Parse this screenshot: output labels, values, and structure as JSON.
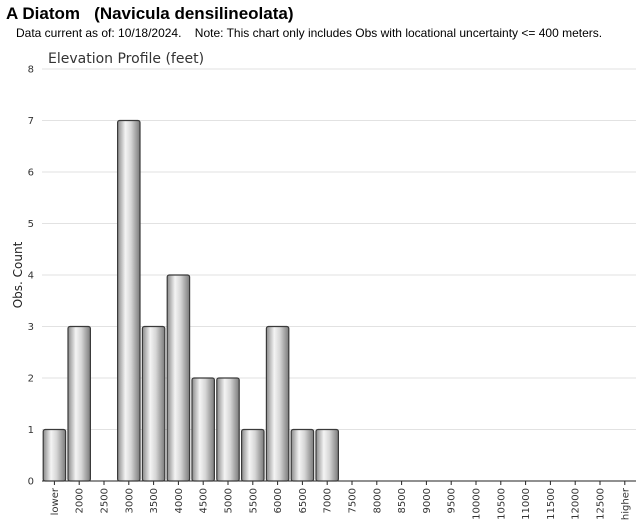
{
  "header": {
    "title": "A Diatom   (Navicula densilineolata)",
    "note": "Data current as of: 10/18/2024.    Note: This chart only includes Obs with locational uncertainty <= 400 meters."
  },
  "chart_data": {
    "type": "bar",
    "title": "Elevation Profile (feet)",
    "xlabel": "",
    "ylabel": "Obs. Count",
    "ylim": [
      0,
      8
    ],
    "yticks": [
      0,
      1,
      2,
      3,
      4,
      5,
      6,
      7,
      8
    ],
    "grid": true,
    "categories": [
      "lower",
      "2000",
      "2500",
      "3000",
      "3500",
      "4000",
      "4500",
      "5000",
      "5500",
      "6000",
      "6500",
      "7000",
      "7500",
      "8000",
      "8500",
      "9000",
      "9500",
      "10000",
      "10500",
      "11000",
      "11500",
      "12000",
      "12500",
      "higher"
    ],
    "values": [
      1,
      3,
      0,
      7,
      3,
      4,
      2,
      2,
      1,
      3,
      1,
      1,
      0,
      0,
      0,
      0,
      0,
      0,
      0,
      0,
      0,
      0,
      0,
      0
    ],
    "bar_color": "#c8c8c8"
  }
}
